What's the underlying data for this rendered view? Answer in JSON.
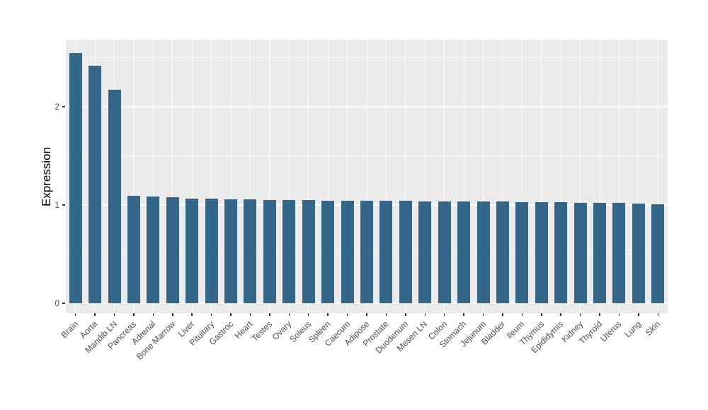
{
  "chart_data": {
    "type": "bar",
    "title": "",
    "xlabel": "",
    "ylabel": "Expression",
    "categories": [
      "Brain",
      "Aorta",
      "Mandib LN",
      "Pancreas",
      "Adrenal",
      "Bone Marrow",
      "Liver",
      "Pituitary",
      "Gastroc",
      "Heart",
      "Testes",
      "Ovary",
      "Soleus",
      "Spleen",
      "Caecum",
      "Adipose",
      "Prostate",
      "Duodenum",
      "Mesen LN",
      "Colon",
      "Stomach",
      "Jejunum",
      "Bladder",
      "Ileum",
      "Thymus",
      "Epididymis",
      "Kidney",
      "Thyroid",
      "Uterus",
      "Lung",
      "Skin"
    ],
    "values": [
      2.55,
      2.42,
      2.17,
      1.094,
      1.086,
      1.079,
      1.068,
      1.062,
      1.058,
      1.054,
      1.051,
      1.05,
      1.048,
      1.046,
      1.044,
      1.043,
      1.042,
      1.04,
      1.038,
      1.037,
      1.036,
      1.035,
      1.034,
      1.032,
      1.03,
      1.028,
      1.025,
      1.022,
      1.018,
      1.011,
      1.006
    ],
    "y_ticks": [
      0,
      1,
      2
    ],
    "y_minor_ticks": [
      0.5,
      1.5,
      2.5
    ],
    "ylim": [
      -0.1,
      2.68
    ],
    "grid": "on",
    "legend": "none",
    "colors": {
      "bar": "#346689",
      "panel_background": "#EBEBEB",
      "grid": "#FFFFFF",
      "tick_text": "#4D4D4D",
      "tick_mark": "#333333",
      "axis_title": "#000000",
      "page_background": "#FFFFFF"
    }
  }
}
